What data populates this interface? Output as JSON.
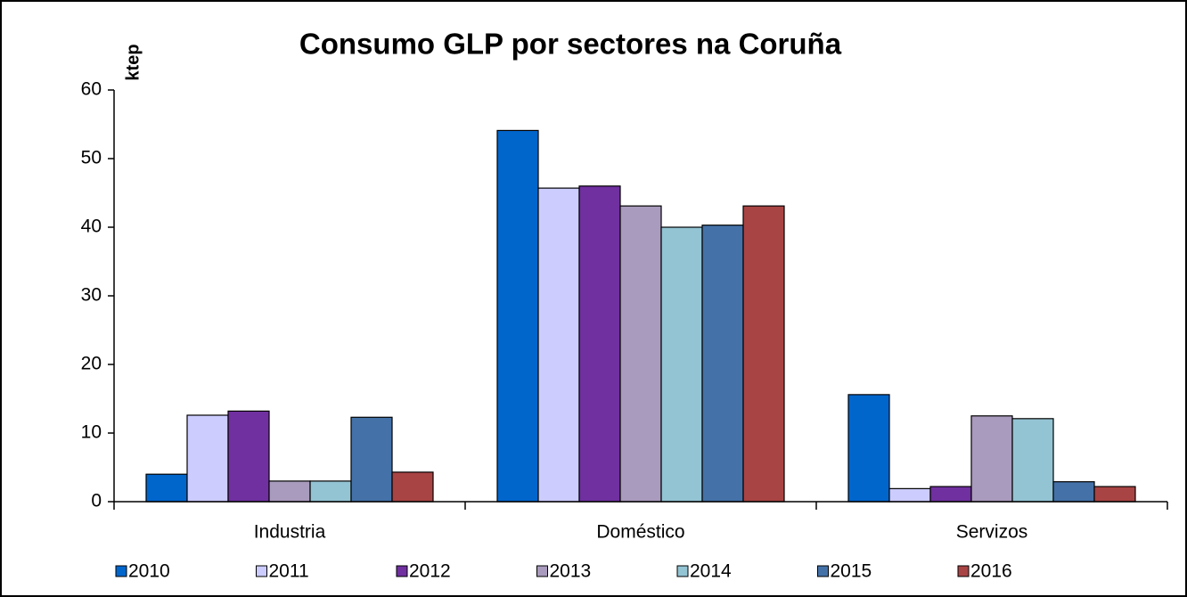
{
  "chart_data": {
    "type": "bar",
    "title": "Consumo GLP por sectores na Coruña",
    "y_label": "ktep",
    "categories": [
      "Industria",
      "Doméstico",
      "Servizos"
    ],
    "series": [
      {
        "name": "2010",
        "color": "#0066cc",
        "values": [
          4.0,
          54.1,
          15.6
        ]
      },
      {
        "name": "2011",
        "color": "#ccccff",
        "values": [
          12.6,
          45.7,
          1.9
        ]
      },
      {
        "name": "2012",
        "color": "#7030a0",
        "values": [
          13.2,
          46.0,
          2.2
        ]
      },
      {
        "name": "2013",
        "color": "#a99bbd",
        "values": [
          3.0,
          43.1,
          12.5
        ]
      },
      {
        "name": "2014",
        "color": "#93c4d4",
        "values": [
          3.0,
          40.0,
          12.1
        ]
      },
      {
        "name": "2015",
        "color": "#4472a8",
        "values": [
          12.3,
          40.3,
          2.9
        ]
      },
      {
        "name": "2016",
        "color": "#a94444",
        "values": [
          4.3,
          43.1,
          2.2
        ]
      }
    ],
    "ylim": [
      0,
      60
    ],
    "yticks": [
      0,
      10,
      20,
      30,
      40,
      50,
      60
    ],
    "grid": false,
    "legend": "bottom"
  }
}
